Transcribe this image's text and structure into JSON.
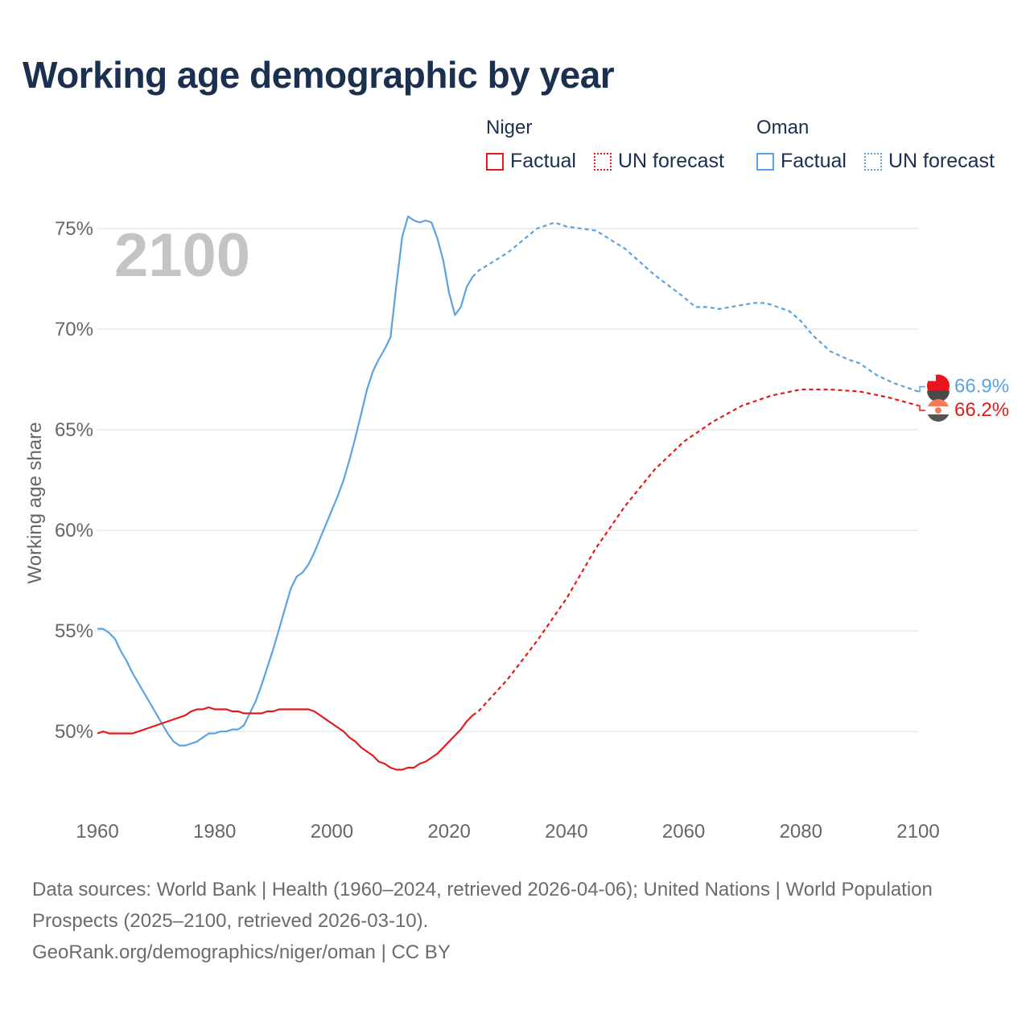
{
  "title": "Working age demographic by year",
  "legend": {
    "niger": {
      "name": "Niger",
      "factual": "Factual",
      "forecast": "UN forecast",
      "color": "#e31a1c"
    },
    "oman": {
      "name": "Oman",
      "factual": "Factual",
      "forecast": "UN forecast",
      "color": "#5aa3e0"
    }
  },
  "year_label": "2100",
  "end_labels": {
    "oman": "66.9%",
    "niger": "66.2%"
  },
  "source": {
    "text": "Data sources: World Bank | Health (1960–2024, retrieved 2026-04-06); United Nations | World Population Prospects (2025–2100, retrieved 2026-03-10).",
    "link": "GeoRank.org/demographics/niger/oman | CC BY"
  },
  "chart_data": {
    "type": "line",
    "ylabel": "Working age share",
    "xlabel": "",
    "xlim": [
      1960,
      2100
    ],
    "ylim": [
      46.2,
      76.6
    ],
    "x_ticks": [
      1960,
      1980,
      2000,
      2020,
      2040,
      2060,
      2080,
      2100
    ],
    "x_tick_labels": [
      "1960",
      "1980",
      "2000",
      "2020",
      "2040",
      "2060",
      "2080",
      "2100"
    ],
    "y_ticks": [
      50,
      55,
      60,
      65,
      70,
      75
    ],
    "y_tick_labels": [
      "50%",
      "55%",
      "60%",
      "65%",
      "70%",
      "75%"
    ],
    "factual_end": 2024,
    "series": [
      {
        "name": "Oman",
        "color": "#5aa3e0",
        "points": [
          [
            1960,
            55.1
          ],
          [
            1961,
            55.1
          ],
          [
            1962,
            54.9
          ],
          [
            1963,
            54.6
          ],
          [
            1964,
            54.0
          ],
          [
            1965,
            53.5
          ],
          [
            1966,
            52.9
          ],
          [
            1967,
            52.4
          ],
          [
            1968,
            51.9
          ],
          [
            1969,
            51.4
          ],
          [
            1970,
            50.9
          ],
          [
            1971,
            50.4
          ],
          [
            1972,
            49.9
          ],
          [
            1973,
            49.5
          ],
          [
            1974,
            49.3
          ],
          [
            1975,
            49.3
          ],
          [
            1976,
            49.4
          ],
          [
            1977,
            49.5
          ],
          [
            1978,
            49.7
          ],
          [
            1979,
            49.9
          ],
          [
            1980,
            49.9
          ],
          [
            1981,
            50.0
          ],
          [
            1982,
            50.0
          ],
          [
            1983,
            50.1
          ],
          [
            1984,
            50.1
          ],
          [
            1985,
            50.3
          ],
          [
            1986,
            50.9
          ],
          [
            1987,
            51.5
          ],
          [
            1988,
            52.3
          ],
          [
            1989,
            53.2
          ],
          [
            1990,
            54.1
          ],
          [
            1991,
            55.1
          ],
          [
            1992,
            56.1
          ],
          [
            1993,
            57.1
          ],
          [
            1994,
            57.7
          ],
          [
            1995,
            57.9
          ],
          [
            1996,
            58.3
          ],
          [
            1997,
            58.9
          ],
          [
            1998,
            59.6
          ],
          [
            1999,
            60.3
          ],
          [
            2000,
            61.0
          ],
          [
            2001,
            61.7
          ],
          [
            2002,
            62.5
          ],
          [
            2003,
            63.5
          ],
          [
            2004,
            64.6
          ],
          [
            2005,
            65.8
          ],
          [
            2006,
            67.0
          ],
          [
            2007,
            67.9
          ],
          [
            2008,
            68.5
          ],
          [
            2009,
            69.0
          ],
          [
            2010,
            69.6
          ],
          [
            2011,
            72.2
          ],
          [
            2012,
            74.6
          ],
          [
            2013,
            75.6
          ],
          [
            2014,
            75.4
          ],
          [
            2015,
            75.3
          ],
          [
            2016,
            75.4
          ],
          [
            2017,
            75.3
          ],
          [
            2018,
            74.5
          ],
          [
            2019,
            73.4
          ],
          [
            2020,
            71.8
          ],
          [
            2021,
            70.7
          ],
          [
            2022,
            71.1
          ],
          [
            2023,
            72.1
          ],
          [
            2024,
            72.6
          ],
          [
            2025,
            72.9
          ],
          [
            2030,
            73.8
          ],
          [
            2035,
            75.0
          ],
          [
            2038,
            75.3
          ],
          [
            2040,
            75.1
          ],
          [
            2045,
            74.9
          ],
          [
            2050,
            74.0
          ],
          [
            2055,
            72.7
          ],
          [
            2060,
            71.6
          ],
          [
            2062,
            71.1
          ],
          [
            2064,
            71.1
          ],
          [
            2066,
            71.0
          ],
          [
            2068,
            71.1
          ],
          [
            2070,
            71.2
          ],
          [
            2072,
            71.3
          ],
          [
            2074,
            71.3
          ],
          [
            2076,
            71.1
          ],
          [
            2078,
            70.9
          ],
          [
            2080,
            70.4
          ],
          [
            2082,
            69.7
          ],
          [
            2085,
            68.9
          ],
          [
            2088,
            68.5
          ],
          [
            2090,
            68.3
          ],
          [
            2093,
            67.7
          ],
          [
            2096,
            67.3
          ],
          [
            2100,
            66.9
          ]
        ]
      },
      {
        "name": "Niger",
        "color": "#e31a1c",
        "points": [
          [
            1960,
            49.9
          ],
          [
            1961,
            50.0
          ],
          [
            1962,
            49.9
          ],
          [
            1963,
            49.9
          ],
          [
            1964,
            49.9
          ],
          [
            1965,
            49.9
          ],
          [
            1966,
            49.9
          ],
          [
            1967,
            50.0
          ],
          [
            1968,
            50.1
          ],
          [
            1969,
            50.2
          ],
          [
            1970,
            50.3
          ],
          [
            1971,
            50.4
          ],
          [
            1972,
            50.5
          ],
          [
            1973,
            50.6
          ],
          [
            1974,
            50.7
          ],
          [
            1975,
            50.8
          ],
          [
            1976,
            51.0
          ],
          [
            1977,
            51.1
          ],
          [
            1978,
            51.1
          ],
          [
            1979,
            51.2
          ],
          [
            1980,
            51.1
          ],
          [
            1981,
            51.1
          ],
          [
            1982,
            51.1
          ],
          [
            1983,
            51.0
          ],
          [
            1984,
            51.0
          ],
          [
            1985,
            50.9
          ],
          [
            1986,
            50.9
          ],
          [
            1987,
            50.9
          ],
          [
            1988,
            50.9
          ],
          [
            1989,
            51.0
          ],
          [
            1990,
            51.0
          ],
          [
            1991,
            51.1
          ],
          [
            1992,
            51.1
          ],
          [
            1993,
            51.1
          ],
          [
            1994,
            51.1
          ],
          [
            1995,
            51.1
          ],
          [
            1996,
            51.1
          ],
          [
            1997,
            51.0
          ],
          [
            1998,
            50.8
          ],
          [
            1999,
            50.6
          ],
          [
            2000,
            50.4
          ],
          [
            2001,
            50.2
          ],
          [
            2002,
            50.0
          ],
          [
            2003,
            49.7
          ],
          [
            2004,
            49.5
          ],
          [
            2005,
            49.2
          ],
          [
            2006,
            49.0
          ],
          [
            2007,
            48.8
          ],
          [
            2008,
            48.5
          ],
          [
            2009,
            48.4
          ],
          [
            2010,
            48.2
          ],
          [
            2011,
            48.1
          ],
          [
            2012,
            48.1
          ],
          [
            2013,
            48.2
          ],
          [
            2014,
            48.2
          ],
          [
            2015,
            48.4
          ],
          [
            2016,
            48.5
          ],
          [
            2017,
            48.7
          ],
          [
            2018,
            48.9
          ],
          [
            2019,
            49.2
          ],
          [
            2020,
            49.5
          ],
          [
            2021,
            49.8
          ],
          [
            2022,
            50.1
          ],
          [
            2023,
            50.5
          ],
          [
            2024,
            50.8
          ],
          [
            2025,
            51.0
          ],
          [
            2030,
            52.6
          ],
          [
            2035,
            54.5
          ],
          [
            2040,
            56.6
          ],
          [
            2045,
            59.1
          ],
          [
            2050,
            61.2
          ],
          [
            2055,
            63.0
          ],
          [
            2060,
            64.4
          ],
          [
            2065,
            65.4
          ],
          [
            2070,
            66.2
          ],
          [
            2075,
            66.7
          ],
          [
            2080,
            67.0
          ],
          [
            2085,
            67.0
          ],
          [
            2090,
            66.9
          ],
          [
            2095,
            66.6
          ],
          [
            2100,
            66.2
          ]
        ]
      }
    ]
  }
}
